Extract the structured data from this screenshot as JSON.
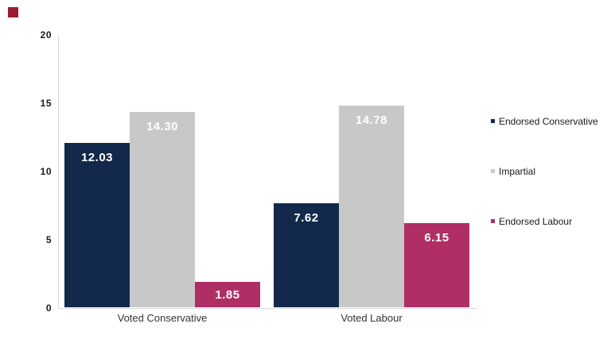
{
  "brand_mark": {
    "color": "#9b1c31"
  },
  "axes": {
    "line_color": "#d9d9d9",
    "tick_color": "#1a1a1a"
  },
  "chart_data": {
    "type": "bar",
    "title": "",
    "categories": [
      "Voted Conservative",
      "Voted Labour"
    ],
    "series": [
      {
        "name": "Endorsed Conservative",
        "color": "#13294b",
        "values": [
          12.03,
          7.62
        ],
        "labels": [
          "12.03",
          "7.62"
        ]
      },
      {
        "name": "Impartial",
        "color": "#c8c8c8",
        "values": [
          14.3,
          14.78
        ],
        "labels": [
          "14.30",
          "14.78"
        ]
      },
      {
        "name": "Endorsed Labour",
        "color": "#b02e66",
        "values": [
          1.85,
          6.15
        ],
        "labels": [
          "1.85",
          "6.15"
        ]
      }
    ],
    "ylim": [
      0,
      20
    ],
    "yticks": [
      0,
      5,
      10,
      15,
      20
    ],
    "grid": false,
    "legend_position": "right",
    "value_label_color": "#ffffff"
  }
}
